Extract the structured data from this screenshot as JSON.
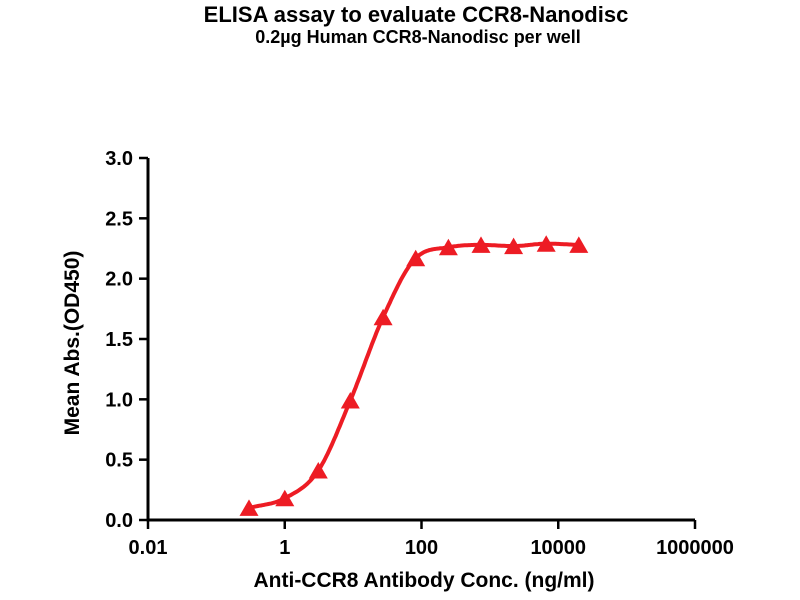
{
  "chart_data": {
    "type": "line",
    "title": "ELISA assay to evaluate CCR8-Nanodisc",
    "subtitle": "0.2µg Human CCR8-Nanodisc per well",
    "xlabel": "Anti-CCR8 Antibody Conc. (ng/ml)",
    "ylabel": "Mean Abs.(OD450)",
    "xscale": "log",
    "xlim": [
      0.01,
      1000000
    ],
    "ylim": [
      0.0,
      3.0
    ],
    "grid": false,
    "legend_position": "none",
    "x_ticks": [
      {
        "value": 0.01,
        "label": "0.01"
      },
      {
        "value": 1,
        "label": "1"
      },
      {
        "value": 100,
        "label": "100"
      },
      {
        "value": 10000,
        "label": "10000"
      },
      {
        "value": 1000000,
        "label": "1000000"
      }
    ],
    "y_ticks": [
      {
        "value": 0.0,
        "label": "0.0"
      },
      {
        "value": 0.5,
        "label": "0.5"
      },
      {
        "value": 1.0,
        "label": "1.0"
      },
      {
        "value": 1.5,
        "label": "1.5"
      },
      {
        "value": 2.0,
        "label": "2.0"
      },
      {
        "value": 2.5,
        "label": "2.5"
      },
      {
        "value": 3.0,
        "label": "3.0"
      }
    ],
    "series": [
      {
        "marker": "triangle-up",
        "line_style": "smooth-sigmoid",
        "color": "#ED1C24",
        "points": [
          {
            "x": 0.3,
            "y": 0.1
          },
          {
            "x": 1.0,
            "y": 0.18
          },
          {
            "x": 3.1,
            "y": 0.41
          },
          {
            "x": 9.1,
            "y": 0.99
          },
          {
            "x": 27.4,
            "y": 1.68
          },
          {
            "x": 82.3,
            "y": 2.17
          },
          {
            "x": 247,
            "y": 2.26
          },
          {
            "x": 741,
            "y": 2.28
          },
          {
            "x": 2222,
            "y": 2.27
          },
          {
            "x": 6667,
            "y": 2.29
          },
          {
            "x": 20000,
            "y": 2.28
          }
        ]
      }
    ],
    "colors": {
      "curve": "#ED1C24",
      "axis": "#000000",
      "text": "#000000",
      "background": "#FFFFFF"
    }
  }
}
